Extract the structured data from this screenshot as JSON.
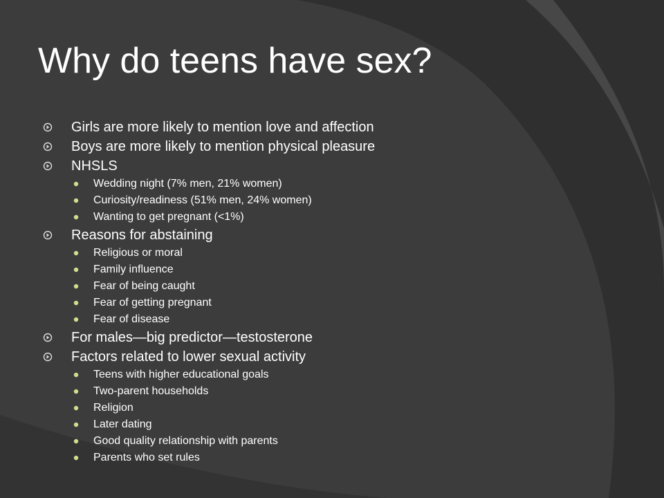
{
  "slide": {
    "title": "Why do teens have sex?",
    "items": [
      {
        "text": "Girls are more likely to mention love and affection",
        "subitems": []
      },
      {
        "text": "Boys are more likely to mention physical pleasure",
        "subitems": []
      },
      {
        "text": "NHSLS",
        "subitems": [
          "Wedding night (7% men, 21% women)",
          "Curiosity/readiness (51% men, 24% women)",
          "Wanting to get pregnant (<1%)"
        ]
      },
      {
        "text": "Reasons for abstaining",
        "subitems": [
          "Religious or moral",
          "Family influence",
          "Fear of being caught",
          "Fear of getting pregnant",
          "Fear of disease"
        ]
      },
      {
        "text": "For males—big predictor—testosterone",
        "subitems": []
      },
      {
        "text": "Factors related to lower sexual activity",
        "subitems": [
          "Teens with higher educational goals",
          "Two-parent households",
          "Religion",
          "Later dating",
          "Good quality relationship with parents",
          "Parents who set rules"
        ]
      }
    ]
  }
}
